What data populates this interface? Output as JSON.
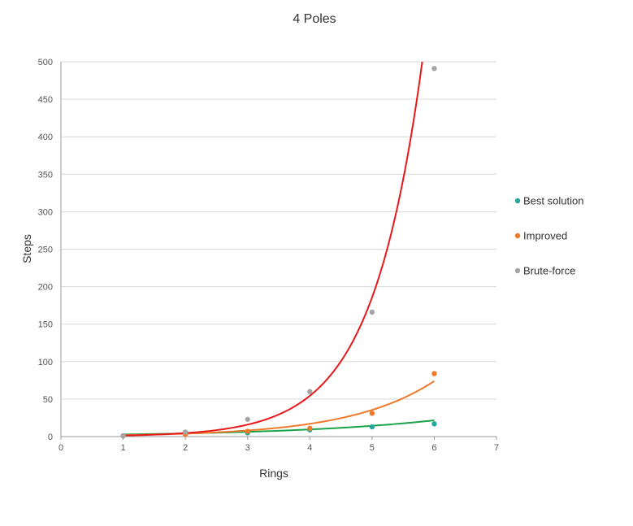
{
  "chart_data": {
    "type": "scatter",
    "title": "4 Poles",
    "xlabel": "Rings",
    "ylabel": "Steps",
    "xlim": [
      0,
      7
    ],
    "ylim": [
      0,
      500
    ],
    "xticks": [
      0,
      1,
      2,
      3,
      4,
      5,
      6,
      7
    ],
    "yticks": [
      0,
      50,
      100,
      150,
      200,
      250,
      300,
      350,
      400,
      450,
      500
    ],
    "grid": "horizontal",
    "legend_position": "right",
    "series": [
      {
        "name": "Best solution",
        "color": "#26a69a",
        "trend_color": "#1aa34a",
        "x": [
          1,
          2,
          3,
          4,
          5,
          6
        ],
        "y": [
          1,
          3,
          5,
          9,
          13,
          17
        ],
        "trendline": {
          "model": "exponential",
          "a": 1.85,
          "b": 0.41
        }
      },
      {
        "name": "Improved",
        "color": "#ef7a2c",
        "trend_color": "#ef7a2c",
        "x": [
          1,
          2,
          3,
          4,
          5,
          6
        ],
        "y": [
          1,
          3,
          7,
          11,
          31,
          84
        ],
        "trendline": {
          "model": "exponential",
          "a": 0.9,
          "b": 0.735
        }
      },
      {
        "name": "Brute-force",
        "color": "#a5a5a5",
        "trend_color": "#e8191c",
        "x": [
          1,
          2,
          3,
          4,
          5,
          6
        ],
        "y": [
          1,
          6,
          23,
          60,
          166,
          491
        ],
        "trendline": {
          "model": "exponential",
          "a": 0.4,
          "b": 1.228
        }
      }
    ]
  }
}
